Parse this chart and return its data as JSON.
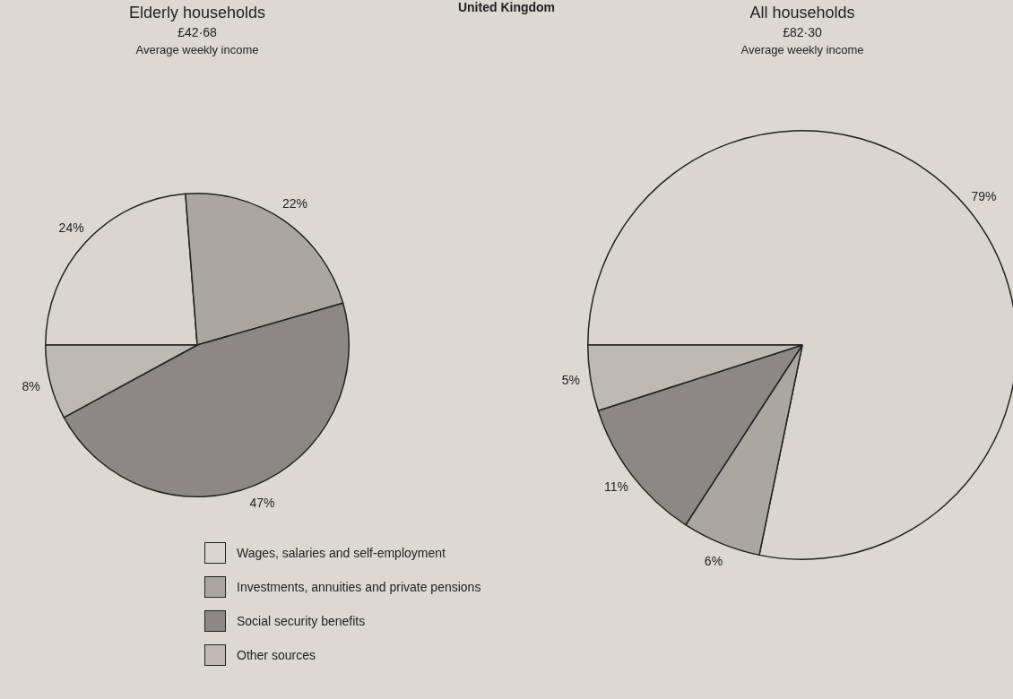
{
  "chart_data": [
    {
      "type": "pie",
      "title": "Elderly households",
      "subtitle": "£42·68",
      "annotations": [
        "Average weekly income",
        "United Kingdom"
      ],
      "categories": [
        "Wages, salaries and self-employment",
        "Investments, annuities and private pensions",
        "Social security benefits",
        "Other sources"
      ],
      "values": [
        24,
        22,
        47,
        8
      ],
      "value_labels": [
        "24%",
        "22%",
        "47%",
        "8%"
      ],
      "colors": [
        "#d9d6cf",
        "#aaa7a1",
        "#8c8984",
        "#bdbab4"
      ],
      "legend": "bottom"
    },
    {
      "type": "pie",
      "title": "All households",
      "subtitle": "£82·30",
      "annotations": [
        "Average weekly income"
      ],
      "categories": [
        null,
        null,
        null,
        null
      ],
      "values": [
        79,
        6,
        11,
        5
      ],
      "value_labels": [
        "79%",
        "6%",
        "11%",
        "5%"
      ],
      "colors": [
        "#d9d6cf",
        "#aaa7a1",
        "#8c8984",
        "#bdbab4"
      ]
    }
  ]
}
